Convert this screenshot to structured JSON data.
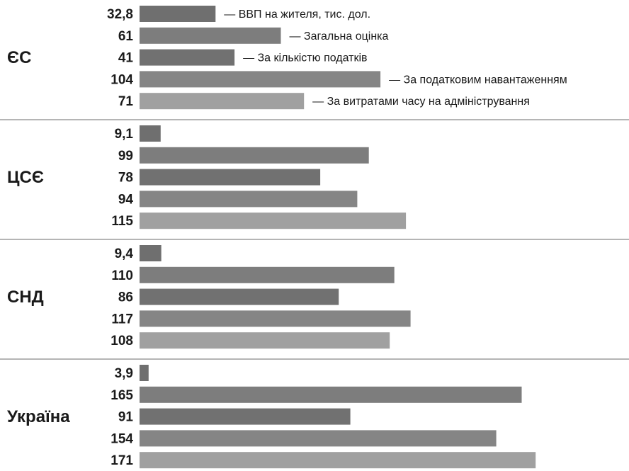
{
  "chart_data": {
    "type": "bar",
    "orientation": "horizontal",
    "series": [
      {
        "name": "ВВП на жителя, тис. дол.",
        "color": "#6f6f6f"
      },
      {
        "name": "Загальна оцінка",
        "color": "#7d7d7d"
      },
      {
        "name": "За кількістю податків",
        "color": "#717171"
      },
      {
        "name": "За податковим навантаженням",
        "color": "#858585"
      },
      {
        "name": "За витратами часу на адміністрування",
        "color": "#a0a0a0"
      }
    ],
    "groups": [
      {
        "name": "ЄС",
        "labels": [
          "32,8",
          "61",
          "41",
          "104",
          "71"
        ],
        "values": [
          32.8,
          61,
          41,
          104,
          71
        ]
      },
      {
        "name": "ЦСЄ",
        "labels": [
          "9,1",
          "99",
          "78",
          "94",
          "115"
        ],
        "values": [
          9.1,
          99,
          78,
          94,
          115
        ]
      },
      {
        "name": "СНД",
        "labels": [
          "9,4",
          "110",
          "86",
          "117",
          "108"
        ],
        "values": [
          9.4,
          110,
          86,
          117,
          108
        ]
      },
      {
        "name": "Україна",
        "labels": [
          "3,9",
          "165",
          "91",
          "154",
          "171"
        ],
        "values": [
          3.9,
          165,
          91,
          154,
          171
        ]
      }
    ],
    "legend_prefix": "—"
  }
}
